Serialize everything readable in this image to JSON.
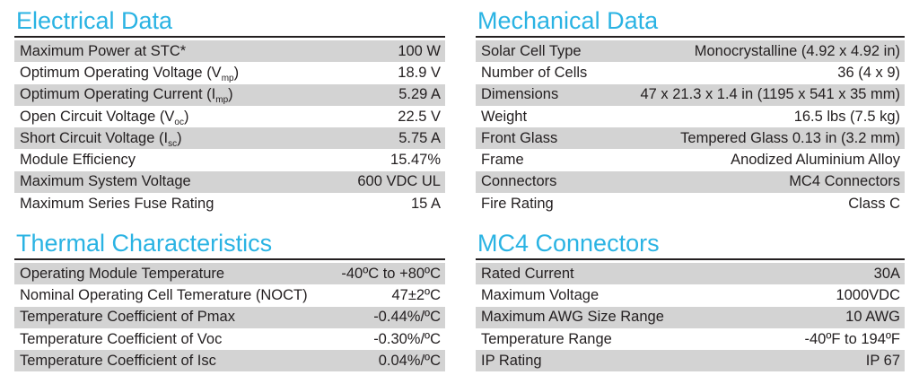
{
  "electrical": {
    "title": "Electrical Data",
    "rows": [
      {
        "label": "Maximum Power at STC*",
        "value": "100 W"
      },
      {
        "label": "Optimum Operating Voltage (V",
        "sub": "mp",
        "suffix": ")",
        "value": "18.9 V"
      },
      {
        "label": "Optimum Operating Current (I",
        "sub": "mp",
        "suffix": ")",
        "value": "5.29 A"
      },
      {
        "label": "Open Circuit Voltage (V",
        "sub": "oc",
        "suffix": ")",
        "value": "22.5 V"
      },
      {
        "label": "Short Circuit Voltage (I",
        "sub": "sc",
        "suffix": ")",
        "value": "5.75 A"
      },
      {
        "label": "Module Efficiency",
        "value": "15.47%"
      },
      {
        "label": "Maximum System Voltage",
        "value": "600 VDC UL"
      },
      {
        "label": "Maximum Series Fuse Rating",
        "value": "15 A"
      }
    ]
  },
  "mechanical": {
    "title": "Mechanical Data",
    "rows": [
      {
        "label": "Solar Cell Type",
        "value": "Monocrystalline (4.92 x 4.92 in)"
      },
      {
        "label": "Number of Cells",
        "value": "36 (4 x 9)"
      },
      {
        "label": "Dimensions",
        "value": "47 x 21.3 x 1.4 in (1195 x 541 x 35 mm)"
      },
      {
        "label": "Weight",
        "value": "16.5 lbs (7.5 kg)"
      },
      {
        "label": "Front Glass",
        "value": "Tempered Glass 0.13 in (3.2 mm)"
      },
      {
        "label": "Frame",
        "value": "Anodized Aluminium Alloy"
      },
      {
        "label": "Connectors",
        "value": "MC4 Connectors"
      },
      {
        "label": "Fire Rating",
        "value": "Class C"
      }
    ]
  },
  "thermal": {
    "title": "Thermal Characteristics",
    "rows": [
      {
        "label": "Operating Module Temperature",
        "value": "-40ºC to +80ºC"
      },
      {
        "label": "Nominal Operating Cell Temerature (NOCT)",
        "value": "47±2ºC"
      },
      {
        "label": "Temperature Coefficient of Pmax",
        "value": "-0.44%/ºC"
      },
      {
        "label": "Temperature Coefficient of Voc",
        "value": "-0.30%/ºC"
      },
      {
        "label": "Temperature Coefficient of Isc",
        "value": "0.04%/ºC"
      }
    ]
  },
  "mc4": {
    "title": "MC4 Connectors",
    "rows": [
      {
        "label": "Rated Current",
        "value": "30A"
      },
      {
        "label": "Maximum Voltage",
        "value": "1000VDC"
      },
      {
        "label": "Maximum AWG Size Range",
        "value": "10 AWG"
      },
      {
        "label": "Temperature Range",
        "value": "-40ºF to 194ºF"
      },
      {
        "label": "IP Rating",
        "value": "IP 67"
      }
    ]
  }
}
